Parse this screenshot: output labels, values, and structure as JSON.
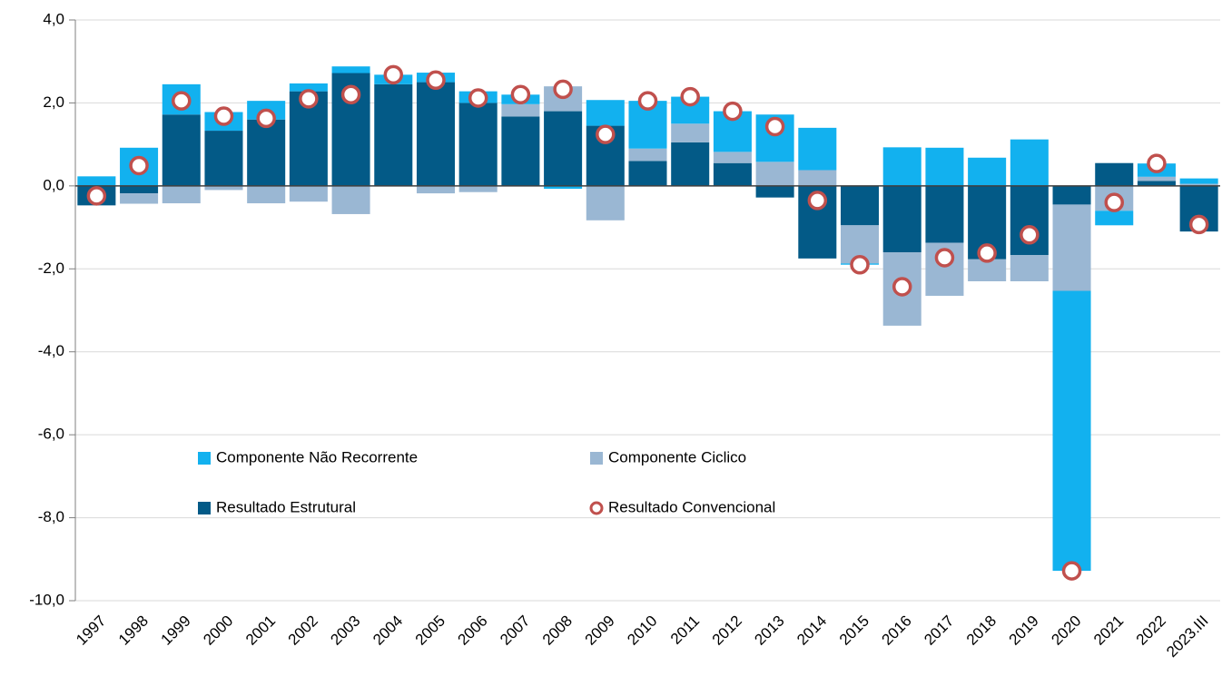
{
  "chart_data": {
    "type": "bar",
    "stacked": true,
    "categories": [
      "1997",
      "1998",
      "1999",
      "2000",
      "2001",
      "2002",
      "2003",
      "2004",
      "2005",
      "2006",
      "2007",
      "2008",
      "2009",
      "2010",
      "2011",
      "2012",
      "2013",
      "2014",
      "2015",
      "2016",
      "2017",
      "2018",
      "2019",
      "2020",
      "2021",
      "2022",
      "2023.III"
    ],
    "series": [
      {
        "name": "Resultado Estrutural",
        "color": "#035a87",
        "values": [
          -0.47,
          -0.18,
          1.72,
          1.33,
          1.6,
          2.28,
          2.72,
          2.45,
          2.5,
          2.0,
          1.67,
          1.8,
          1.45,
          0.6,
          1.05,
          0.55,
          -0.28,
          -1.75,
          -0.95,
          -1.6,
          -1.37,
          -1.77,
          -1.67,
          -0.45,
          0.55,
          0.12,
          -1.1
        ]
      },
      {
        "name": "Componente Ciclico",
        "color": "#9ab7d3",
        "values": [
          0,
          -0.25,
          -0.42,
          -0.1,
          -0.42,
          -0.38,
          -0.68,
          0,
          -0.18,
          -0.15,
          0.3,
          0.6,
          -0.83,
          0.3,
          0.45,
          0.27,
          0.58,
          0.38,
          -0.92,
          -1.77,
          -1.28,
          -0.53,
          -0.63,
          -2.08,
          -0.6,
          0.1,
          0.05
        ]
      },
      {
        "name": "Componente Não Recorrente",
        "color": "#12b1ef",
        "values": [
          0.23,
          0.92,
          0.73,
          0.45,
          0.45,
          0.19,
          0.16,
          0.23,
          0.23,
          0.28,
          0.23,
          -0.07,
          0.62,
          1.15,
          0.65,
          0.98,
          1.14,
          1.02,
          -0.03,
          0.93,
          0.92,
          0.68,
          1.12,
          -6.75,
          -0.35,
          0.32,
          0.13
        ]
      },
      {
        "name": "Resultado Convencional",
        "type": "scatter",
        "color": "#c0504d",
        "values": [
          -0.24,
          0.49,
          2.05,
          1.68,
          1.63,
          2.1,
          2.2,
          2.68,
          2.55,
          2.12,
          2.2,
          2.33,
          1.24,
          2.05,
          2.15,
          1.8,
          1.43,
          -0.35,
          -1.9,
          -2.43,
          -1.73,
          -1.62,
          -1.18,
          -9.28,
          -0.4,
          0.54,
          -0.93
        ]
      }
    ],
    "ylim": [
      -10,
      4
    ],
    "yticks": [
      {
        "value": -10,
        "label": "-10,0"
      },
      {
        "value": -8,
        "label": "-8,0"
      },
      {
        "value": -6,
        "label": "-6,0"
      },
      {
        "value": -4,
        "label": "-4,0"
      },
      {
        "value": -2,
        "label": "-2,0"
      },
      {
        "value": 0,
        "label": "0,0"
      },
      {
        "value": 2,
        "label": "2,0"
      },
      {
        "value": 4,
        "label": "4,0"
      }
    ],
    "grid": true,
    "legend": "inside"
  }
}
